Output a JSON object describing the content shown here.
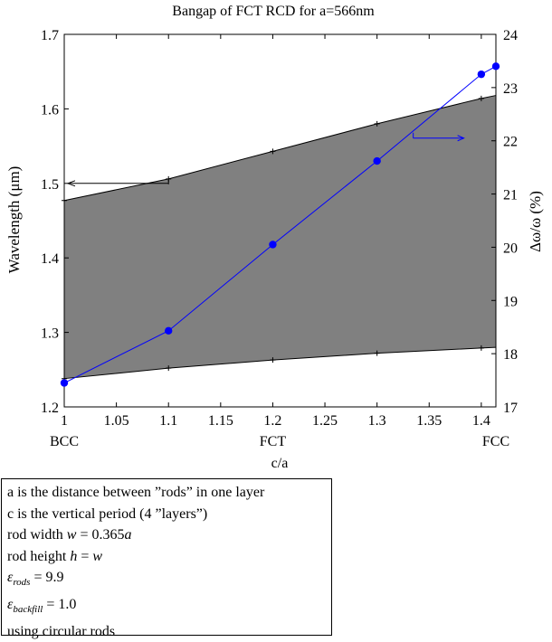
{
  "chart_data": {
    "type": "line",
    "title": "Bangap of FCT RCD for a=566nm",
    "xlabel": "c/a",
    "ylabel_left": "Wavelength (μm)",
    "ylabel_right": "Δω/ω (%)",
    "xlim": [
      1,
      1.414
    ],
    "ylim_left": [
      1.2,
      1.7
    ],
    "ylim_right": [
      17,
      24
    ],
    "x_ticks": [
      "1",
      "1.05",
      "1.1",
      "1.15",
      "1.2",
      "1.25",
      "1.3",
      "1.35",
      "1.4"
    ],
    "x_tick_values": [
      1,
      1.05,
      1.1,
      1.15,
      1.2,
      1.25,
      1.3,
      1.35,
      1.4
    ],
    "y_left_ticks": [
      "1.2",
      "1.3",
      "1.4",
      "1.5",
      "1.6",
      "1.7"
    ],
    "y_left_tick_values": [
      1.2,
      1.3,
      1.4,
      1.5,
      1.6,
      1.7
    ],
    "y_right_ticks": [
      "17",
      "18",
      "19",
      "20",
      "21",
      "22",
      "23",
      "24"
    ],
    "y_right_tick_values": [
      17,
      18,
      19,
      20,
      21,
      22,
      23,
      24
    ],
    "structure_labels": [
      {
        "text": "BCC",
        "x": 1
      },
      {
        "text": "FCT",
        "x": 1.2
      },
      {
        "text": "FCC",
        "x": 1.414
      }
    ],
    "gap_band": {
      "axis": "left",
      "x": [
        1,
        1.1,
        1.2,
        1.3,
        1.4,
        1.414
      ],
      "upper": [
        1.477,
        1.506,
        1.543,
        1.58,
        1.614,
        1.618
      ],
      "lower": [
        1.238,
        1.252,
        1.263,
        1.272,
        1.279,
        1.28
      ]
    },
    "series": [
      {
        "axis": "right",
        "x": [
          1,
          1.1,
          1.2,
          1.3,
          1.4,
          1.414
        ],
        "values": [
          17.45,
          18.43,
          20.05,
          21.62,
          23.25,
          23.4
        ]
      }
    ],
    "colors": {
      "band_fill": "#808080",
      "series": "#0000ff",
      "axis": "#000000"
    }
  },
  "notes": {
    "line1": "a is the distance between ”rods” in one layer",
    "line2": "c is the vertical period (4 ”layers”)",
    "line3_text": "rod width ",
    "line3_math": "w",
    "line3_value": " = 0.365",
    "line3_unit": "a",
    "line4_text": "rod height ",
    "line4_math": "h",
    "line4_eq": " = ",
    "line4_value": "w",
    "line5_sym": "ε",
    "line5_sub": "rods",
    "line5_value": " = 9.9",
    "line6_sym": "ε",
    "line6_sub": "backfill",
    "line6_value": " = 1.0",
    "line7": "using circular rods"
  }
}
